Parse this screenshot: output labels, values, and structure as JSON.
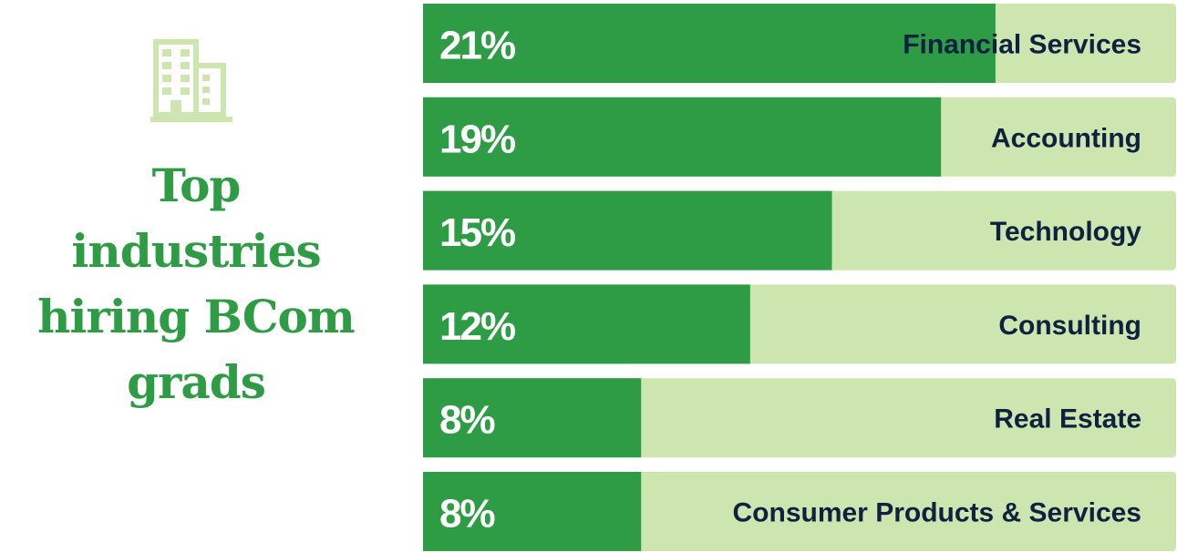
{
  "title_lines": [
    "Top",
    "industries",
    "hiring BCom",
    "grads"
  ],
  "icon": "building-icon",
  "colors": {
    "accent": "#2e9c45",
    "track": "#cde5ae",
    "icon": "#cde5ae",
    "label": "#0e2140",
    "value": "#ffffff"
  },
  "chart_data": {
    "type": "bar",
    "orientation": "horizontal",
    "categories": [
      "Financial Services",
      "Accounting",
      "Technology",
      "Consulting",
      "Real Estate",
      "Consumer Products & Services"
    ],
    "values": [
      21,
      19,
      15,
      12,
      8,
      8
    ],
    "value_labels": [
      "21%",
      "19%",
      "15%",
      "12%",
      "8%",
      "8%"
    ],
    "unit": "%",
    "xlim": [
      0,
      100
    ]
  }
}
